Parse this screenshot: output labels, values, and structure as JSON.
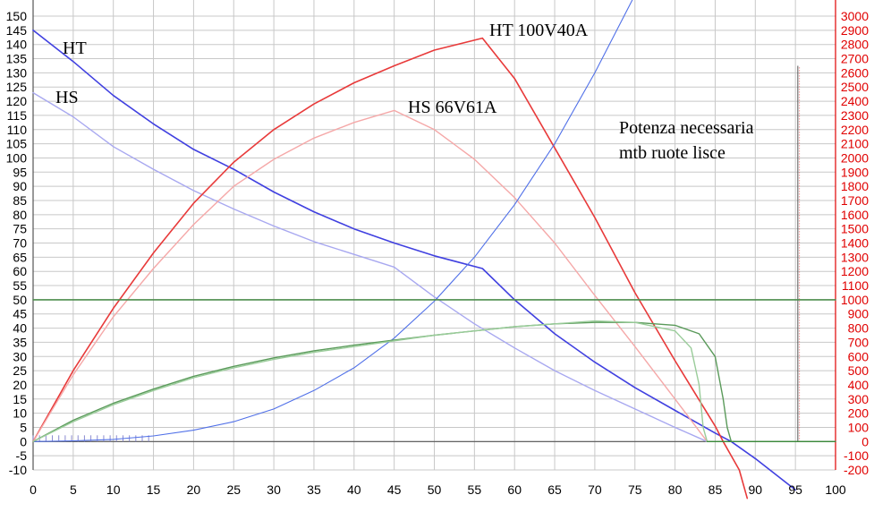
{
  "chart_data": {
    "type": "line",
    "title": "",
    "xlabel": "",
    "ylabel": "",
    "xlim": [
      0,
      100
    ],
    "ylim_left": [
      -10,
      150
    ],
    "ylim_right": [
      -200,
      3000
    ],
    "grid": true,
    "x_ticks": [
      0,
      5,
      10,
      15,
      20,
      25,
      30,
      35,
      40,
      45,
      50,
      55,
      60,
      65,
      70,
      75,
      80,
      85,
      90,
      95,
      100
    ],
    "y_left_ticks": [
      -10,
      -5,
      0,
      5,
      10,
      15,
      20,
      25,
      30,
      35,
      40,
      45,
      50,
      55,
      60,
      65,
      70,
      75,
      80,
      85,
      90,
      95,
      100,
      105,
      110,
      115,
      120,
      125,
      130,
      135,
      140,
      145,
      150
    ],
    "y_right_ticks": [
      -200,
      -100,
      0,
      100,
      200,
      300,
      400,
      500,
      600,
      700,
      800,
      900,
      1000,
      1100,
      1200,
      1300,
      1400,
      1500,
      1600,
      1700,
      1800,
      1900,
      2000,
      2100,
      2200,
      2300,
      2400,
      2500,
      2600,
      2700,
      2800,
      2900,
      3000
    ],
    "colors": {
      "left_axis": "#000000",
      "right_axis": "#e00000",
      "grid": "#c8c8c8"
    },
    "annotations": {
      "ht": "HT",
      "hs": "HS",
      "ht_power": "HT 100V40A",
      "hs_power": "HS 66V61A",
      "mtb_line1": "Potenza necessaria",
      "mtb_line2": "mtb ruote lisce"
    },
    "series": [
      {
        "axis": "left",
        "color": "#4040e0",
        "width": 1.6,
        "points": [
          [
            0,
            145
          ],
          [
            5,
            134
          ],
          [
            10,
            122
          ],
          [
            15,
            112
          ],
          [
            20,
            103
          ],
          [
            25,
            96
          ],
          [
            30,
            88
          ],
          [
            35,
            81
          ],
          [
            40,
            75
          ],
          [
            45,
            70
          ],
          [
            50,
            65.5
          ],
          [
            56,
            61
          ],
          [
            60,
            50
          ],
          [
            65,
            38
          ],
          [
            70,
            28
          ],
          [
            75,
            19
          ],
          [
            80,
            11
          ],
          [
            85,
            3
          ],
          [
            87,
            0
          ],
          [
            90,
            -6
          ],
          [
            95,
            -17
          ]
        ]
      },
      {
        "axis": "left",
        "color": "#a8a8f0",
        "width": 1.4,
        "points": [
          [
            0,
            123
          ],
          [
            5,
            114.5
          ],
          [
            10,
            104
          ],
          [
            15,
            96
          ],
          [
            20,
            88.5
          ],
          [
            25,
            82
          ],
          [
            30,
            76
          ],
          [
            35,
            70.5
          ],
          [
            40,
            66
          ],
          [
            45,
            61.5
          ],
          [
            50,
            51
          ],
          [
            55,
            41.5
          ],
          [
            60,
            33
          ],
          [
            65,
            25
          ],
          [
            70,
            18
          ],
          [
            75,
            11.5
          ],
          [
            80,
            5
          ],
          [
            84,
            0
          ]
        ]
      },
      {
        "axis": "right",
        "color": "#e83a3a",
        "width": 1.6,
        "points": [
          [
            0,
            0
          ],
          [
            5,
            500
          ],
          [
            10,
            940
          ],
          [
            15,
            1330
          ],
          [
            20,
            1680
          ],
          [
            25,
            1970
          ],
          [
            30,
            2200
          ],
          [
            35,
            2380
          ],
          [
            40,
            2530
          ],
          [
            45,
            2650
          ],
          [
            50,
            2760
          ],
          [
            56,
            2845
          ],
          [
            60,
            2560
          ],
          [
            65,
            2070
          ],
          [
            70,
            1580
          ],
          [
            75,
            1050
          ],
          [
            80,
            570
          ],
          [
            85,
            110
          ],
          [
            86,
            0
          ],
          [
            88,
            -200
          ],
          [
            89,
            -400
          ]
        ]
      },
      {
        "axis": "right",
        "color": "#f5a8a8",
        "width": 1.4,
        "points": [
          [
            0,
            0
          ],
          [
            5,
            470
          ],
          [
            10,
            880
          ],
          [
            15,
            1220
          ],
          [
            20,
            1530
          ],
          [
            25,
            1800
          ],
          [
            30,
            1990
          ],
          [
            35,
            2140
          ],
          [
            40,
            2250
          ],
          [
            45,
            2335
          ],
          [
            50,
            2200
          ],
          [
            55,
            1990
          ],
          [
            60,
            1720
          ],
          [
            65,
            1400
          ],
          [
            70,
            1030
          ],
          [
            75,
            670
          ],
          [
            80,
            300
          ],
          [
            84,
            0
          ]
        ]
      },
      {
        "axis": "right",
        "color": "#5070e8",
        "width": 1.1,
        "points": [
          [
            0,
            0
          ],
          [
            5,
            5
          ],
          [
            10,
            15
          ],
          [
            15,
            40
          ],
          [
            20,
            80
          ],
          [
            25,
            140
          ],
          [
            30,
            230
          ],
          [
            35,
            360
          ],
          [
            40,
            520
          ],
          [
            45,
            730
          ],
          [
            50,
            990
          ],
          [
            55,
            1300
          ],
          [
            60,
            1670
          ],
          [
            65,
            2100
          ],
          [
            70,
            2600
          ],
          [
            75,
            3150
          ]
        ]
      },
      {
        "axis": "left",
        "color": "#5a9a5a",
        "width": 1.4,
        "points": [
          [
            0,
            0
          ],
          [
            5,
            7.5
          ],
          [
            10,
            13.5
          ],
          [
            15,
            18.5
          ],
          [
            20,
            23
          ],
          [
            25,
            26.5
          ],
          [
            30,
            29.5
          ],
          [
            35,
            32
          ],
          [
            40,
            34
          ],
          [
            45,
            35.8
          ],
          [
            50,
            37.5
          ],
          [
            55,
            39
          ],
          [
            60,
            40.5
          ],
          [
            65,
            41.5
          ],
          [
            70,
            42
          ],
          [
            75,
            42
          ],
          [
            80,
            41
          ],
          [
            83,
            38
          ],
          [
            85,
            30
          ],
          [
            86,
            15
          ],
          [
            86.5,
            5
          ],
          [
            87,
            0
          ]
        ]
      },
      {
        "axis": "left",
        "color": "#9acc9a",
        "width": 1.4,
        "points": [
          [
            0,
            0
          ],
          [
            5,
            7
          ],
          [
            10,
            13
          ],
          [
            15,
            18
          ],
          [
            20,
            22.5
          ],
          [
            25,
            26
          ],
          [
            30,
            29
          ],
          [
            35,
            31.5
          ],
          [
            40,
            33.5
          ],
          [
            45,
            35.5
          ],
          [
            50,
            37.5
          ],
          [
            55,
            39
          ],
          [
            60,
            40.5
          ],
          [
            65,
            41.5
          ],
          [
            70,
            42.5
          ],
          [
            75,
            42
          ],
          [
            80,
            39
          ],
          [
            82,
            33
          ],
          [
            83,
            20
          ],
          [
            83.5,
            5
          ],
          [
            84,
            0
          ]
        ]
      },
      {
        "axis": "left",
        "color": "#4e8e4e",
        "width": 1.6,
        "points": [
          [
            0,
            50
          ],
          [
            100,
            50
          ]
        ]
      },
      {
        "axis": "left",
        "color": "#3a8a3a",
        "width": 1.4,
        "points": [
          [
            84,
            0
          ],
          [
            100,
            0
          ]
        ]
      }
    ]
  }
}
